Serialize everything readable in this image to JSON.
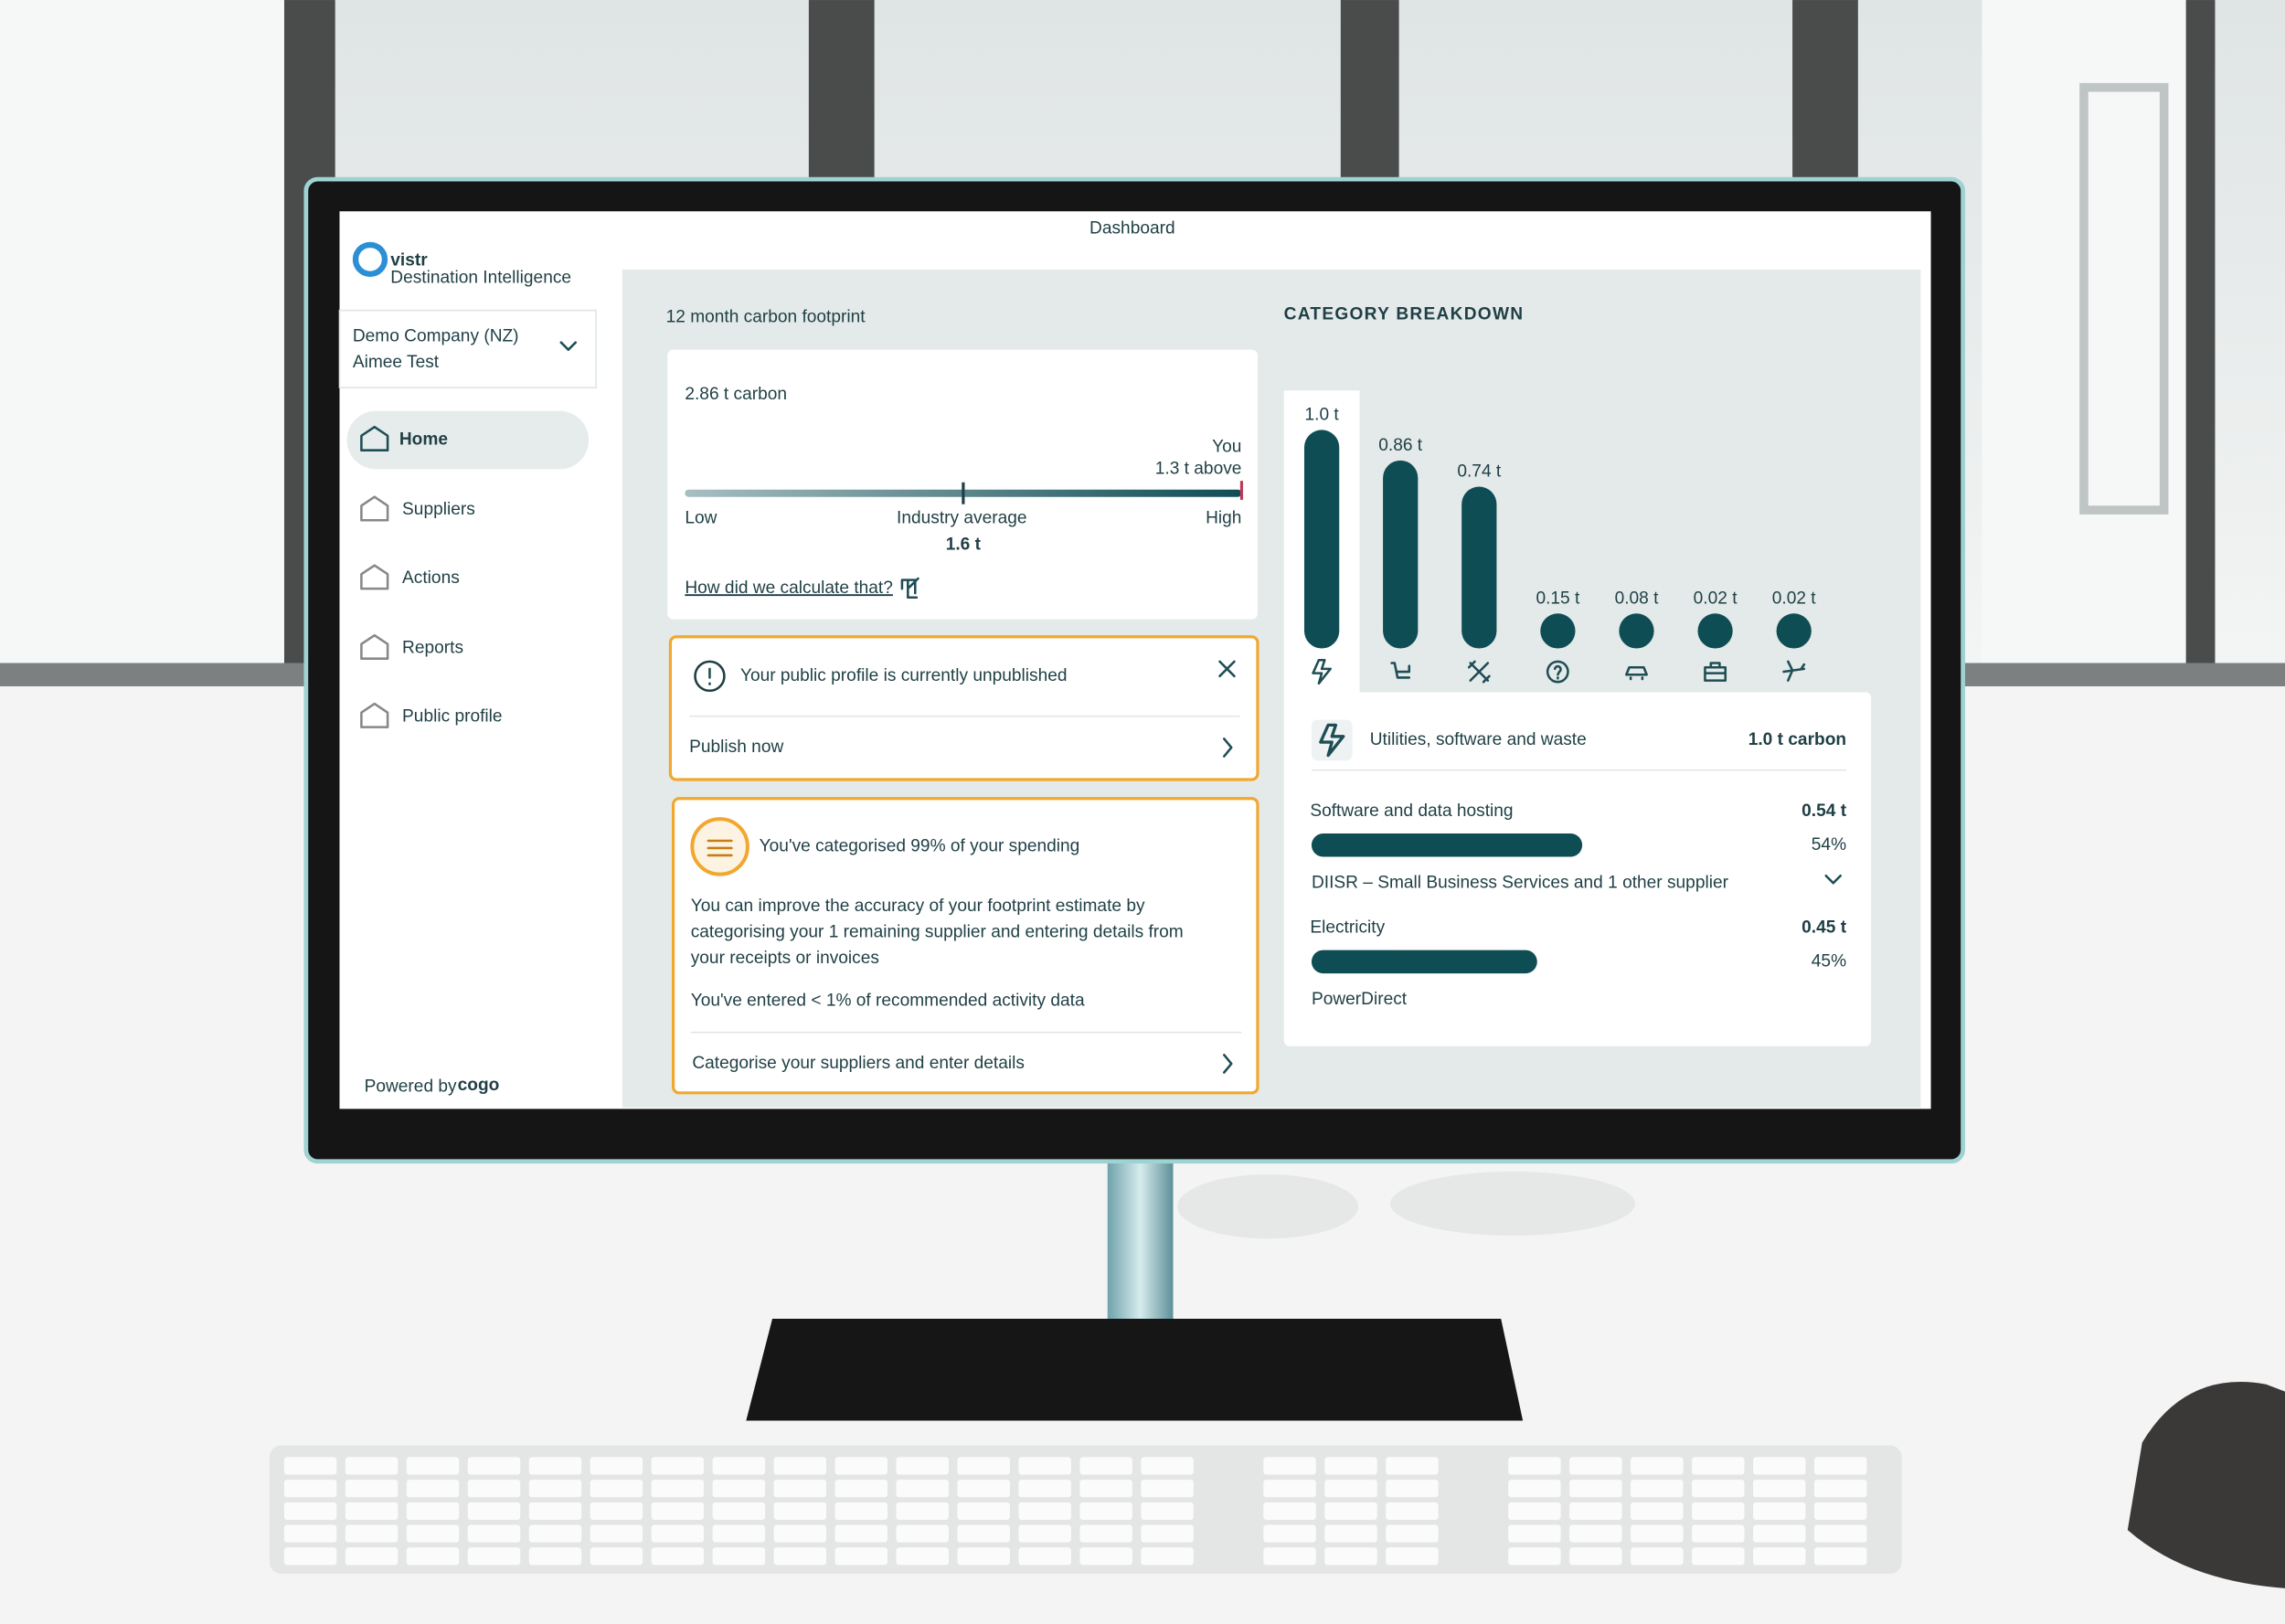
{
  "header": {
    "title": "Dashboard"
  },
  "sidebar": {
    "logo": "vistr",
    "logo_tagline": "Destination Intelligence",
    "company": "Demo Company (NZ)",
    "user": "Aimee Test",
    "nav": [
      "Home",
      "Suppliers",
      "Actions",
      "Reports",
      "Public profile"
    ],
    "powered_by": "Powered by",
    "powered_brand": "cogo"
  },
  "footprint": {
    "heading": "12 month carbon footprint",
    "total": "2.86 t carbon",
    "you_label": "You",
    "difference": "1.3 t above",
    "low": "Low",
    "average_label": "Industry average",
    "average_value": "1.6 t",
    "high": "High",
    "link": "How did we calculate that?"
  },
  "profile_alert": {
    "message": "Your public profile is currently unpublished",
    "action": "Publish now"
  },
  "categorise_card": {
    "title": "You've categorised 99% of your spending",
    "body": [
      "You can improve the accuracy of your footprint estimate by",
      "categorising your 1 remaining supplier and entering details from",
      "your receipts or invoices"
    ],
    "note": "You've entered < 1% of recommended activity data",
    "action": "Categorise your suppliers and enter details"
  },
  "breakdown": {
    "title": "CATEGORY BREAKDOWN",
    "values": [
      1.0,
      0.86,
      0.74,
      0.15,
      0.08,
      0.02,
      0.02
    ],
    "value_labels": [
      "1.0 t",
      "0.86 t",
      "0.74 t",
      "0.15 t",
      "0.08 t",
      "0.02 t",
      "0.02 t"
    ],
    "selected": {
      "name": "Utilities, software and waste",
      "total": "1.0 t carbon",
      "items": [
        {
          "name": "Software and data hosting",
          "amount": "0.54 t",
          "share": 54,
          "share_label": "54%",
          "suppliers": "DIISR – Small Business Services and 1 other supplier"
        },
        {
          "name": "Electricity",
          "amount": "0.45 t",
          "share": 45,
          "share_label": "45%",
          "suppliers": "PowerDirect"
        }
      ]
    }
  }
}
